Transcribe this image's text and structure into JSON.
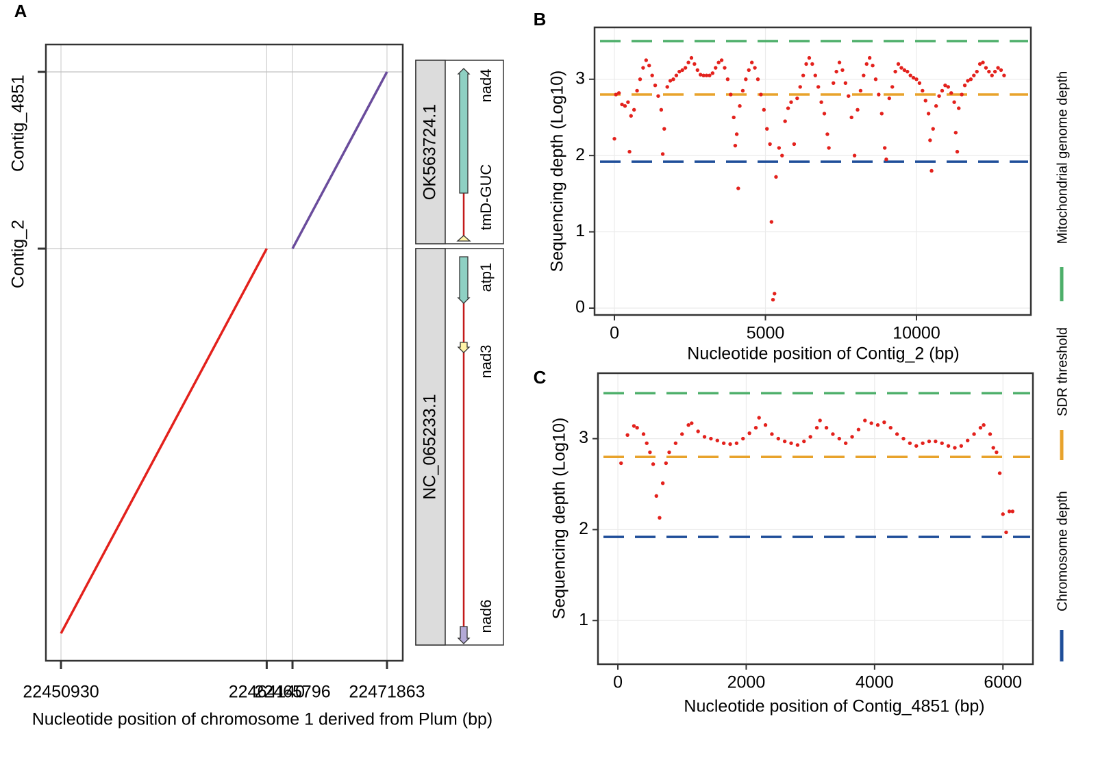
{
  "chart_data": [
    {
      "type": "line",
      "panel": "A",
      "x_label": "Nucleotide position of chromosome 1 derived from Plum (bp)",
      "xlim": [
        22449962,
        22472875
      ],
      "xticks": [
        22450930,
        22464140,
        22465796,
        22471863
      ],
      "ylim": [
        -940,
        20217
      ],
      "yticks": [
        {
          "value": 13210,
          "label": "Contig_2"
        },
        {
          "value": 19277,
          "label": "Contig_4851"
        }
      ],
      "grid": true,
      "series": [
        {
          "color": "#e3211c",
          "x": [
            22450930,
            22464140
          ],
          "values": [
            0,
            13210
          ]
        },
        {
          "color": "#6a4c9c",
          "x": [
            22465796,
            22471863
          ],
          "values": [
            13210,
            19277
          ]
        }
      ],
      "tracks": [
        {
          "name": "OK563724.1",
          "genes": [
            "nad4",
            "tmD-GUC"
          ]
        },
        {
          "name": "NC_065233.1",
          "genes": [
            "atp1",
            "nad3",
            "nad6"
          ]
        }
      ]
    },
    {
      "type": "scatter",
      "panel": "B",
      "x_label": "Nucleotide position of Contig_2 (bp)",
      "y_label": "Sequencing depth (Log10)",
      "xlim": [
        -658,
        13787
      ],
      "xticks": [
        0,
        5000,
        10000
      ],
      "ylim": [
        -0.09,
        3.68
      ],
      "yticks": [
        0,
        1,
        2,
        3
      ],
      "grid": true,
      "hlines": [
        {
          "value": 3.5,
          "color": "#4daf6a"
        },
        {
          "value": 2.8,
          "color": "#e8a32c"
        },
        {
          "value": 1.92,
          "color": "#1f4e99"
        }
      ],
      "series": [
        {
          "color": "#e3211c",
          "x": [
            0,
            50,
            150,
            250,
            350,
            450,
            500,
            550,
            650,
            750,
            850,
            950,
            1050,
            1150,
            1250,
            1350,
            1450,
            1550,
            1600,
            1650,
            1750,
            1850,
            1950,
            2050,
            2150,
            2250,
            2350,
            2450,
            2550,
            2650,
            2750,
            2850,
            2950,
            3050,
            3150,
            3250,
            3350,
            3450,
            3550,
            3650,
            3750,
            3850,
            3950,
            4000,
            4050,
            4100,
            4150,
            4250,
            4350,
            4450,
            4550,
            4650,
            4750,
            4850,
            4950,
            5050,
            5150,
            5200,
            5250,
            5300,
            5350,
            5450,
            5550,
            5650,
            5750,
            5850,
            5950,
            6050,
            6150,
            6250,
            6350,
            6450,
            6550,
            6650,
            6750,
            6850,
            6950,
            7050,
            7100,
            7250,
            7350,
            7450,
            7550,
            7650,
            7750,
            7850,
            7950,
            8050,
            8150,
            8250,
            8350,
            8450,
            8550,
            8650,
            8750,
            8850,
            8950,
            9000,
            9100,
            9200,
            9300,
            9400,
            9500,
            9600,
            9700,
            9800,
            9900,
            10000,
            10100,
            10200,
            10300,
            10400,
            10450,
            10500,
            10550,
            10650,
            10750,
            10850,
            10950,
            11050,
            11150,
            11250,
            11300,
            11350,
            11400,
            11500,
            11600,
            11700,
            11800,
            11900,
            12000,
            12100,
            12200,
            12300,
            12400,
            12500,
            12600,
            12700,
            12800,
            12900
          ],
          "values": [
            2.22,
            2.8,
            2.82,
            2.67,
            2.65,
            2.7,
            2.05,
            2.52,
            2.6,
            2.85,
            3.0,
            3.15,
            3.25,
            3.18,
            3.05,
            2.92,
            2.78,
            2.6,
            2.02,
            2.35,
            2.9,
            2.98,
            3.0,
            3.05,
            3.1,
            3.12,
            3.15,
            3.22,
            3.28,
            3.2,
            3.12,
            3.06,
            3.05,
            3.05,
            3.05,
            3.08,
            3.15,
            3.22,
            3.25,
            3.15,
            3.0,
            2.8,
            2.5,
            2.13,
            2.28,
            1.57,
            2.65,
            2.85,
            3.0,
            3.12,
            3.22,
            3.15,
            3.0,
            2.8,
            2.6,
            2.35,
            2.15,
            1.13,
            0.11,
            0.19,
            1.72,
            2.1,
            2.0,
            2.45,
            2.62,
            2.7,
            2.15,
            2.75,
            2.9,
            3.05,
            3.2,
            3.28,
            3.2,
            3.05,
            2.9,
            2.7,
            2.55,
            2.28,
            2.1,
            2.95,
            3.1,
            3.22,
            3.12,
            2.95,
            2.78,
            2.5,
            2.0,
            2.6,
            2.85,
            3.05,
            3.2,
            3.28,
            3.18,
            3.0,
            2.8,
            2.55,
            2.1,
            1.95,
            2.75,
            2.9,
            3.1,
            3.2,
            3.15,
            3.12,
            3.1,
            3.05,
            3.02,
            3.0,
            2.95,
            2.85,
            2.72,
            2.55,
            2.2,
            1.8,
            2.35,
            2.65,
            2.78,
            2.85,
            2.92,
            2.9,
            2.82,
            2.7,
            2.3,
            2.05,
            2.62,
            2.8,
            2.92,
            2.98,
            3.0,
            3.05,
            3.1,
            3.2,
            3.22,
            3.15,
            3.1,
            3.05,
            3.1,
            3.15,
            3.12,
            3.05
          ]
        }
      ]
    },
    {
      "type": "scatter",
      "panel": "C",
      "x_label": "Nucleotide position of Contig_4851 (bp)",
      "y_label": "Sequencing depth (Log10)",
      "xlim": [
        -310,
        6467
      ],
      "xticks": [
        0,
        2000,
        4000,
        6000
      ],
      "ylim": [
        0.52,
        3.72
      ],
      "yticks": [
        1,
        2,
        3
      ],
      "grid": true,
      "hlines": [
        {
          "value": 3.5,
          "color": "#4daf6a"
        },
        {
          "value": 2.8,
          "color": "#e8a32c"
        },
        {
          "value": 1.92,
          "color": "#1f4e99"
        }
      ],
      "series": [
        {
          "color": "#e3211c",
          "x": [
            50,
            150,
            250,
            300,
            400,
            450,
            500,
            550,
            600,
            650,
            700,
            750,
            800,
            900,
            1000,
            1100,
            1150,
            1250,
            1350,
            1450,
            1550,
            1650,
            1750,
            1850,
            1950,
            2050,
            2150,
            2200,
            2300,
            2400,
            2500,
            2600,
            2700,
            2800,
            2900,
            3000,
            3100,
            3150,
            3250,
            3350,
            3450,
            3550,
            3650,
            3750,
            3850,
            3950,
            4050,
            4150,
            4250,
            4350,
            4450,
            4550,
            4650,
            4750,
            4850,
            4950,
            5050,
            5150,
            5250,
            5350,
            5450,
            5550,
            5650,
            5700,
            5800,
            5850,
            5900,
            5950,
            6000,
            6050,
            6100,
            6150
          ],
          "values": [
            2.73,
            3.04,
            3.14,
            3.12,
            3.05,
            2.95,
            2.85,
            2.72,
            2.37,
            2.13,
            2.51,
            2.73,
            2.85,
            2.95,
            3.05,
            3.15,
            3.17,
            3.08,
            3.02,
            3.0,
            2.98,
            2.95,
            2.94,
            2.95,
            3.0,
            3.06,
            3.12,
            3.23,
            3.15,
            3.05,
            3.0,
            2.97,
            2.95,
            2.93,
            2.97,
            3.02,
            3.12,
            3.2,
            3.12,
            3.05,
            3.0,
            2.95,
            3.02,
            3.1,
            3.2,
            3.17,
            3.15,
            3.18,
            3.12,
            3.05,
            3.0,
            2.95,
            2.92,
            2.95,
            2.97,
            2.97,
            2.95,
            2.92,
            2.9,
            2.92,
            2.98,
            3.05,
            3.12,
            3.15,
            3.05,
            2.9,
            2.85,
            2.62,
            2.17,
            1.97,
            2.2,
            2.2
          ]
        }
      ]
    }
  ],
  "legend": [
    {
      "name": "Mitochondrial genome depth",
      "color": "#4daf6a"
    },
    {
      "name": "SDR threshold",
      "color": "#e8a32c"
    },
    {
      "name": "Chromosome depth",
      "color": "#1f4e99"
    }
  ]
}
